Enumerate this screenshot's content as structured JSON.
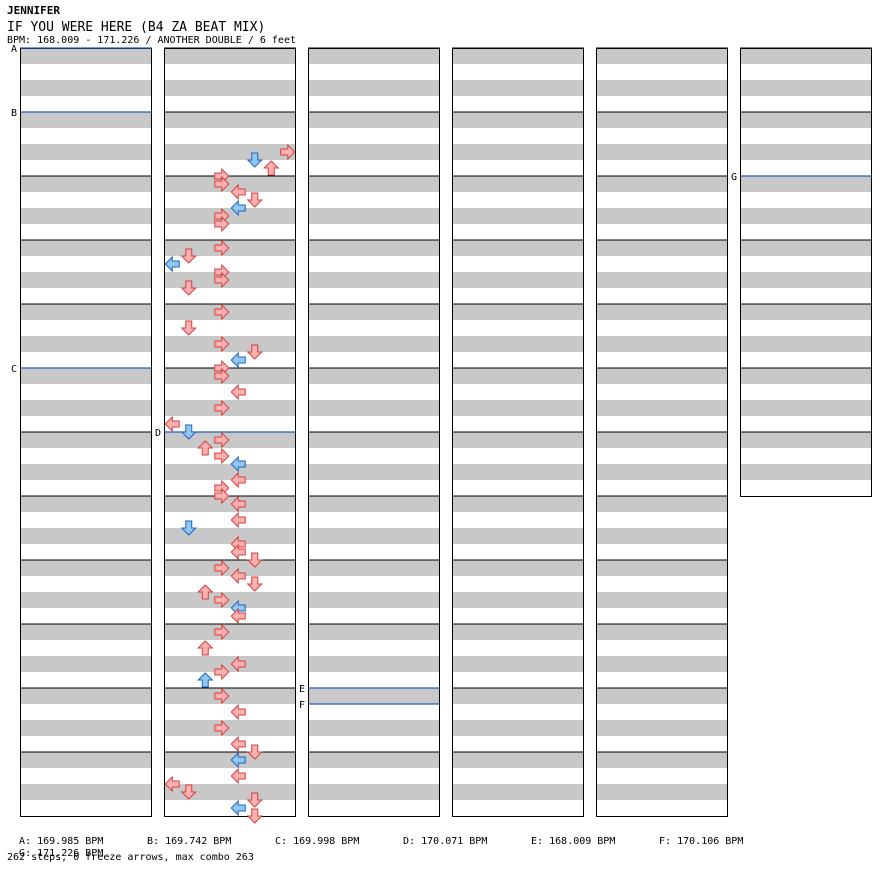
{
  "header": {
    "artist": "JENNIFER",
    "title": "IF YOU WERE HERE (B4 ZA BEAT MIX)",
    "info": "BPM: 168.009 - 171.226 / ANOTHER DOUBLE / 6 feet"
  },
  "bpm_changes": [
    {
      "label": "A",
      "text": "A: 169.985 BPM",
      "measure": 0,
      "beat_fraction": 0
    },
    {
      "label": "B",
      "text": "B: 169.742 BPM",
      "measure": 1,
      "beat_fraction": 0
    },
    {
      "label": "C",
      "text": "C: 169.998 BPM",
      "measure": 5,
      "beat_fraction": 0
    },
    {
      "label": "D",
      "text": "D: 170.071 BPM",
      "measure": 18,
      "beat_fraction": 0
    },
    {
      "label": "E",
      "text": "E: 168.009 BPM",
      "measure": 34,
      "beat_fraction": 0
    },
    {
      "label": "F",
      "text": "F: 170.106 BPM",
      "measure": 34,
      "beat_fraction": 0.25
    },
    {
      "label": "G",
      "text": "G: 171.226 BPM",
      "measure": 62,
      "beat_fraction": 0
    }
  ],
  "stats": "262 steps, 0 freeze arrows, max combo 263",
  "colors": {
    "band": "#c8c8c8",
    "frame": "#000000",
    "bpm_line": "#1f5fbf",
    "step_red_fill": "#ffb0b0",
    "step_red_stroke": "#d04040",
    "step_blue_fill": "#90c8f0",
    "step_blue_stroke": "#2060c0"
  },
  "chart_data": {
    "type": "step-chart",
    "mode": "ANOTHER DOUBLE",
    "difficulty_feet": 6,
    "columns": 6,
    "measures_per_column": 12,
    "total_measures": 67,
    "lane_order": [
      "P1-left",
      "P1-down",
      "P1-up",
      "P1-right",
      "P2-left",
      "P2-down",
      "P2-up",
      "P2-right"
    ],
    "steps_total": 262,
    "freeze_arrows": 0,
    "max_combo": 263,
    "note_legend": {
      "r": "step on an off-beat (red)",
      "b": "step on a quarter beat (blue)"
    },
    "notes": [
      [
        1,
        12,
        7,
        "r"
      ],
      [
        1,
        14,
        6,
        "r"
      ],
      [
        1,
        13,
        5,
        "b"
      ],
      [
        1,
        15,
        3,
        "r"
      ],
      [
        1,
        16,
        3,
        "r"
      ],
      [
        1,
        17,
        4,
        "r"
      ],
      [
        1,
        18,
        5,
        "r"
      ],
      [
        1,
        19,
        4,
        "b"
      ],
      [
        1,
        20,
        3,
        "r"
      ],
      [
        1,
        21,
        3,
        "r"
      ],
      [
        1,
        24,
        3,
        "r"
      ],
      [
        1,
        25,
        1,
        "r"
      ],
      [
        1,
        26,
        0,
        "b"
      ],
      [
        1,
        27,
        3,
        "r"
      ],
      [
        1,
        28,
        3,
        "r"
      ],
      [
        1,
        29,
        1,
        "r"
      ],
      [
        1,
        32,
        3,
        "r"
      ],
      [
        1,
        34,
        1,
        "r"
      ],
      [
        1,
        36,
        3,
        "r"
      ],
      [
        1,
        37,
        5,
        "r"
      ],
      [
        1,
        38,
        4,
        "b"
      ],
      [
        1,
        39,
        3,
        "r"
      ],
      [
        1,
        40,
        3,
        "r"
      ],
      [
        1,
        42,
        4,
        "r"
      ],
      [
        1,
        44,
        3,
        "r"
      ],
      [
        1,
        46,
        0,
        "r"
      ],
      [
        1,
        47,
        1,
        "b"
      ],
      [
        1,
        48,
        3,
        "r"
      ],
      [
        1,
        49,
        2,
        "r"
      ],
      [
        1,
        50,
        3,
        "r"
      ],
      [
        1,
        51,
        4,
        "b"
      ],
      [
        1,
        53,
        4,
        "r"
      ],
      [
        1,
        54,
        3,
        "r"
      ],
      [
        1,
        55,
        3,
        "r"
      ],
      [
        1,
        56,
        4,
        "r"
      ],
      [
        1,
        58,
        4,
        "r"
      ],
      [
        1,
        59,
        1,
        "b"
      ],
      [
        1,
        61,
        4,
        "r"
      ],
      [
        1,
        62,
        4,
        "r"
      ],
      [
        1,
        63,
        5,
        "r"
      ],
      [
        1,
        64,
        3,
        "r"
      ],
      [
        1,
        65,
        4,
        "r"
      ],
      [
        1,
        66,
        5,
        "r"
      ],
      [
        1,
        67,
        2,
        "r"
      ],
      [
        1,
        68,
        3,
        "r"
      ],
      [
        1,
        69,
        4,
        "b"
      ],
      [
        1,
        70,
        4,
        "r"
      ],
      [
        1,
        72,
        3,
        "r"
      ],
      [
        1,
        74,
        2,
        "r"
      ],
      [
        1,
        76,
        4,
        "r"
      ],
      [
        1,
        77,
        3,
        "r"
      ],
      [
        1,
        78,
        2,
        "b"
      ],
      [
        1,
        80,
        3,
        "r"
      ],
      [
        1,
        82,
        4,
        "r"
      ],
      [
        1,
        84,
        3,
        "r"
      ],
      [
        1,
        86,
        4,
        "r"
      ],
      [
        1,
        87,
        5,
        "r"
      ],
      [
        1,
        88,
        4,
        "b"
      ],
      [
        1,
        90,
        4,
        "r"
      ],
      [
        1,
        91,
        0,
        "r"
      ],
      [
        1,
        92,
        1,
        "r"
      ],
      [
        1,
        93,
        5,
        "r"
      ],
      [
        1,
        94,
        4,
        "b"
      ],
      [
        1,
        95,
        5,
        "r"
      ]
    ]
  }
}
